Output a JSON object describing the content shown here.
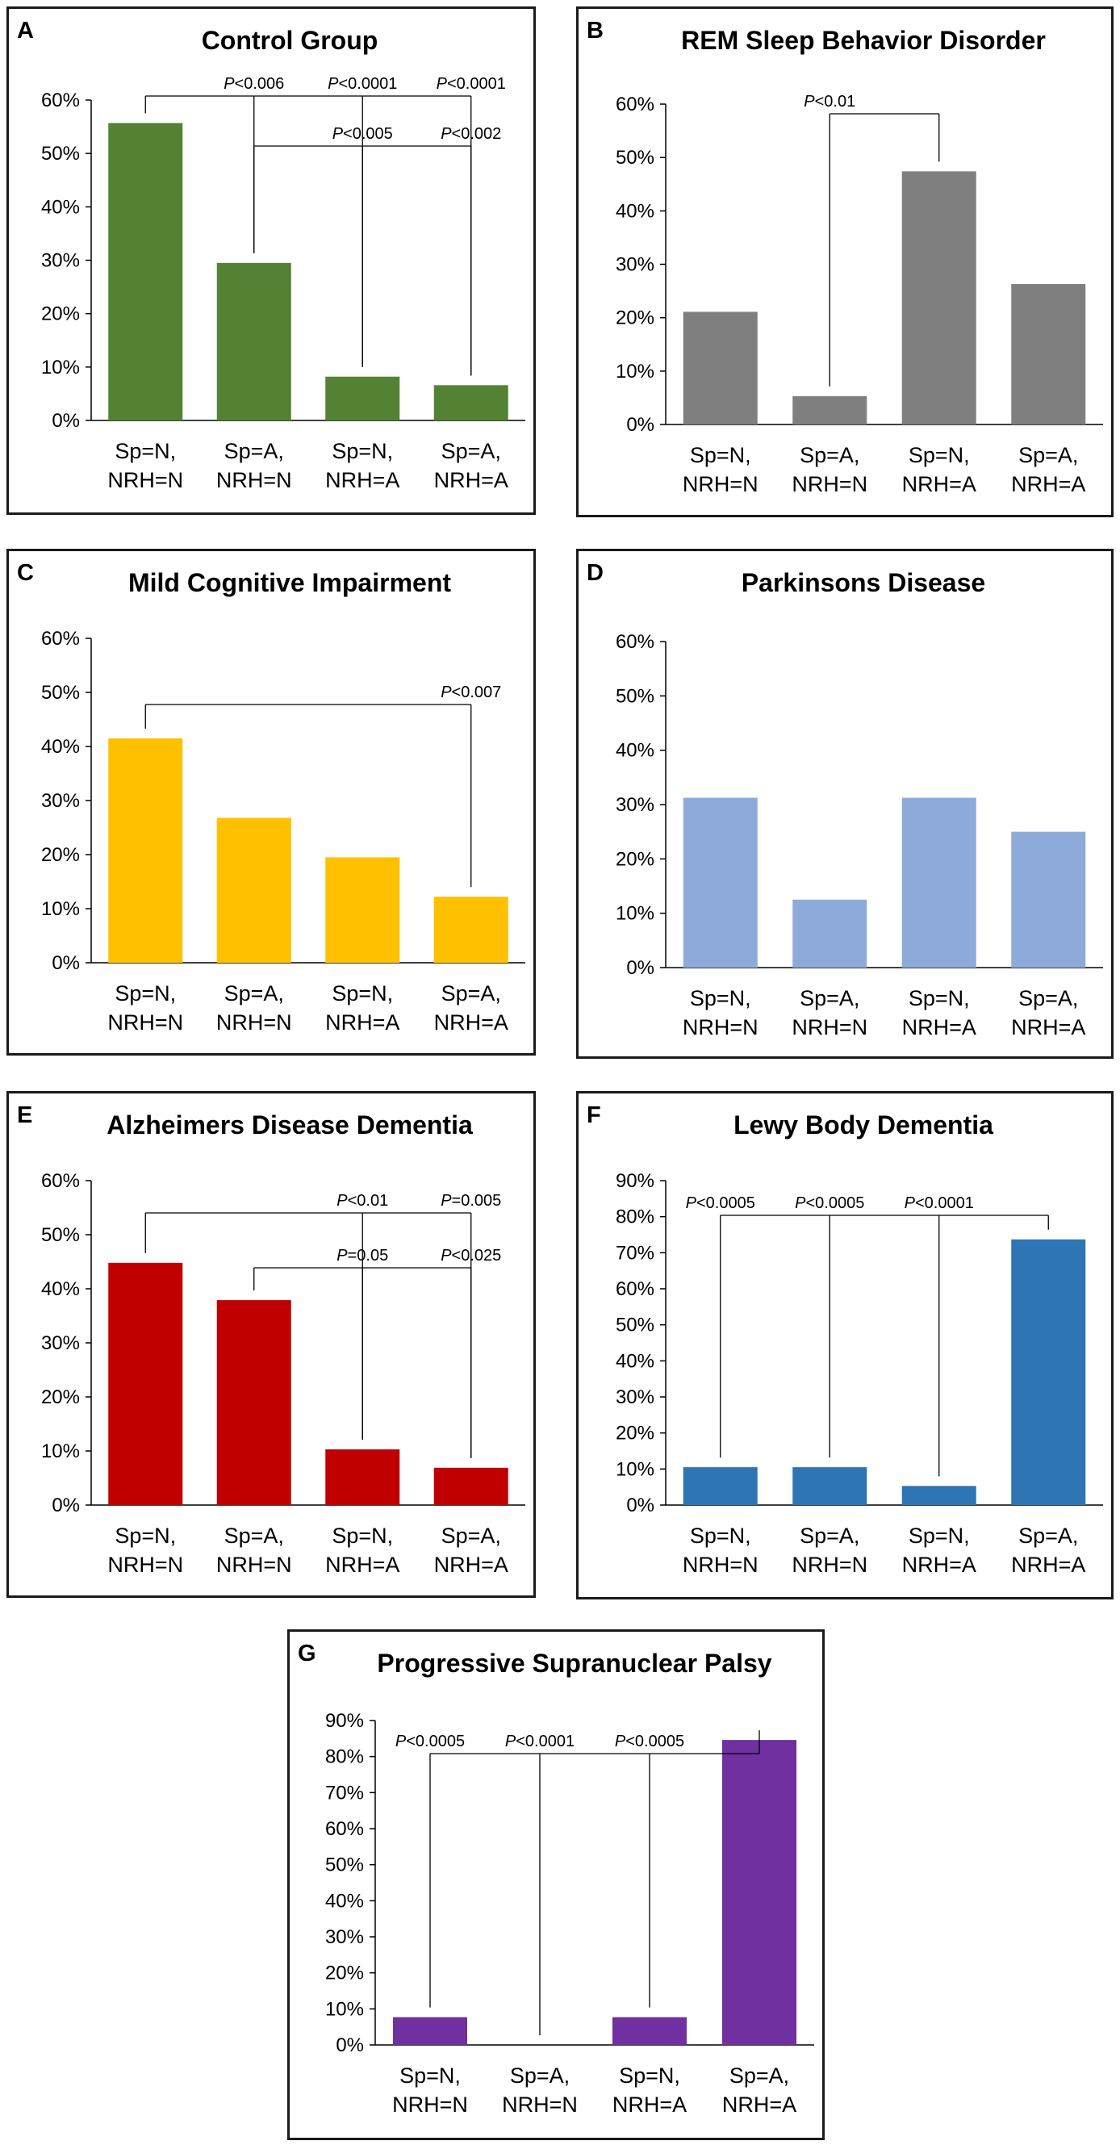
{
  "chart_data": [
    {
      "panel": "A",
      "type": "bar",
      "title": "Control Group",
      "color": "#548235",
      "categories": [
        [
          "Sp=N,",
          "NRH=N"
        ],
        [
          "Sp=A,",
          "NRH=N"
        ],
        [
          "Sp=N,",
          "NRH=A"
        ],
        [
          "Sp=A,",
          "NRH=A"
        ]
      ],
      "values": [
        55.7,
        29.5,
        8.2,
        6.6
      ],
      "ylim": [
        0,
        60
      ],
      "yticks": [
        "0%",
        "10%",
        "20%",
        "30%",
        "40%",
        "50%",
        "60%"
      ],
      "xlabel": "",
      "ylabel": "",
      "brackets": [
        {
          "from": 0,
          "tier": 0,
          "targets": [
            {
              "to": 1,
              "label": [
                "P",
                "<0.006"
              ]
            },
            {
              "to": 2,
              "label": [
                "P",
                "<0.0001"
              ]
            },
            {
              "to": 3,
              "label": [
                "P",
                "<0.0001"
              ]
            }
          ]
        },
        {
          "from": 1,
          "tier": 1,
          "targets": [
            {
              "to": 2,
              "label": [
                "P",
                "<0.005"
              ]
            },
            {
              "to": 3,
              "label": [
                "P",
                "<0.002"
              ]
            }
          ]
        }
      ]
    },
    {
      "panel": "B",
      "type": "bar",
      "title": "REM Sleep Behavior Disorder",
      "color": "#7f7f7f",
      "categories": [
        [
          "Sp=N,",
          "NRH=N"
        ],
        [
          "Sp=A,",
          "NRH=N"
        ],
        [
          "Sp=N,",
          "NRH=A"
        ],
        [
          "Sp=A,",
          "NRH=A"
        ]
      ],
      "values": [
        21.1,
        5.3,
        47.4,
        26.3
      ],
      "ylim": [
        0,
        60
      ],
      "yticks": [
        "0%",
        "10%",
        "20%",
        "30%",
        "40%",
        "50%",
        "60%"
      ],
      "xlabel": "",
      "ylabel": "",
      "brackets": [
        {
          "from": 2,
          "tier": 0,
          "targets": [
            {
              "to": 1,
              "label": [
                "P",
                "<0.01"
              ]
            }
          ]
        }
      ]
    },
    {
      "panel": "C",
      "type": "bar",
      "title": "Mild Cognitive Impairment",
      "color": "#ffc000",
      "categories": [
        [
          "Sp=N,",
          "NRH=N"
        ],
        [
          "Sp=A,",
          "NRH=N"
        ],
        [
          "Sp=N,",
          "NRH=A"
        ],
        [
          "Sp=A,",
          "NRH=A"
        ]
      ],
      "values": [
        41.5,
        26.8,
        19.5,
        12.2
      ],
      "ylim": [
        0,
        60
      ],
      "yticks": [
        "0%",
        "10%",
        "20%",
        "30%",
        "40%",
        "50%",
        "60%"
      ],
      "xlabel": "",
      "ylabel": "",
      "brackets": [
        {
          "from": 0,
          "tier": 0,
          "targets": [
            {
              "to": 3,
              "label": [
                "P",
                "<0.007"
              ]
            }
          ]
        }
      ]
    },
    {
      "panel": "D",
      "type": "bar",
      "title": "Parkinsons Disease",
      "color": "#8eaadb",
      "categories": [
        [
          "Sp=N,",
          "NRH=N"
        ],
        [
          "Sp=A,",
          "NRH=N"
        ],
        [
          "Sp=N,",
          "NRH=A"
        ],
        [
          "Sp=A,",
          "NRH=A"
        ]
      ],
      "values": [
        31.25,
        12.5,
        31.25,
        25.0
      ],
      "ylim": [
        0,
        60
      ],
      "yticks": [
        "0%",
        "10%",
        "20%",
        "30%",
        "40%",
        "50%",
        "60%"
      ],
      "xlabel": "",
      "ylabel": "",
      "brackets": []
    },
    {
      "panel": "E",
      "type": "bar",
      "title": "Alzheimers Disease Dementia",
      "color": "#c00000",
      "categories": [
        [
          "Sp=N,",
          "NRH=N"
        ],
        [
          "Sp=A,",
          "NRH=N"
        ],
        [
          "Sp=N,",
          "NRH=A"
        ],
        [
          "Sp=A,",
          "NRH=A"
        ]
      ],
      "values": [
        44.8,
        37.9,
        10.3,
        6.9
      ],
      "ylim": [
        0,
        60
      ],
      "yticks": [
        "0%",
        "10%",
        "20%",
        "30%",
        "40%",
        "50%",
        "60%"
      ],
      "xlabel": "",
      "ylabel": "",
      "brackets": [
        {
          "from": 0,
          "tier": 0,
          "targets": [
            {
              "to": 2,
              "label": [
                "P",
                "<0.01"
              ]
            },
            {
              "to": 3,
              "label": [
                "P",
                "=0.005"
              ]
            }
          ]
        },
        {
          "from": 1,
          "tier": 1,
          "targets": [
            {
              "to": 2,
              "label": [
                "P",
                "=0.05"
              ]
            },
            {
              "to": 3,
              "label": [
                "P",
                "<0.025"
              ]
            }
          ]
        }
      ]
    },
    {
      "panel": "F",
      "type": "bar",
      "title": "Lewy Body Dementia",
      "color": "#2e75b6",
      "categories": [
        [
          "Sp=N,",
          "NRH=N"
        ],
        [
          "Sp=A,",
          "NRH=N"
        ],
        [
          "Sp=N,",
          "NRH=A"
        ],
        [
          "Sp=A,",
          "NRH=A"
        ]
      ],
      "values": [
        10.5,
        10.5,
        5.3,
        73.7
      ],
      "ylim": [
        0,
        90
      ],
      "yticks": [
        "0%",
        "10%",
        "20%",
        "30%",
        "40%",
        "50%",
        "60%",
        "70%",
        "80%",
        "90%"
      ],
      "xlabel": "",
      "ylabel": "",
      "brackets": [
        {
          "from": 3,
          "tier": 0,
          "targets": [
            {
              "to": 0,
              "label": [
                "P",
                "<0.0005"
              ]
            },
            {
              "to": 1,
              "label": [
                "P",
                "<0.0005"
              ]
            },
            {
              "to": 2,
              "label": [
                "P",
                "<0.0001"
              ]
            }
          ]
        }
      ]
    },
    {
      "panel": "G",
      "type": "bar",
      "title": "Progressive Supranuclear Palsy",
      "color": "#7030a0",
      "categories": [
        [
          "Sp=N,",
          "NRH=N"
        ],
        [
          "Sp=A,",
          "NRH=N"
        ],
        [
          "Sp=N,",
          "NRH=A"
        ],
        [
          "Sp=A,",
          "NRH=A"
        ]
      ],
      "values": [
        7.7,
        0,
        7.7,
        84.6
      ],
      "ylim": [
        0,
        90
      ],
      "yticks": [
        "0%",
        "10%",
        "20%",
        "30%",
        "40%",
        "50%",
        "60%",
        "70%",
        "80%",
        "90%"
      ],
      "xlabel": "",
      "ylabel": "",
      "brackets": [
        {
          "from": 3,
          "tier": 0,
          "targets": [
            {
              "to": 0,
              "label": [
                "P",
                "<0.0005"
              ]
            },
            {
              "to": 1,
              "label": [
                "P",
                "<0.0001"
              ]
            },
            {
              "to": 2,
              "label": [
                "P",
                "<0.0005"
              ]
            }
          ]
        }
      ]
    }
  ]
}
